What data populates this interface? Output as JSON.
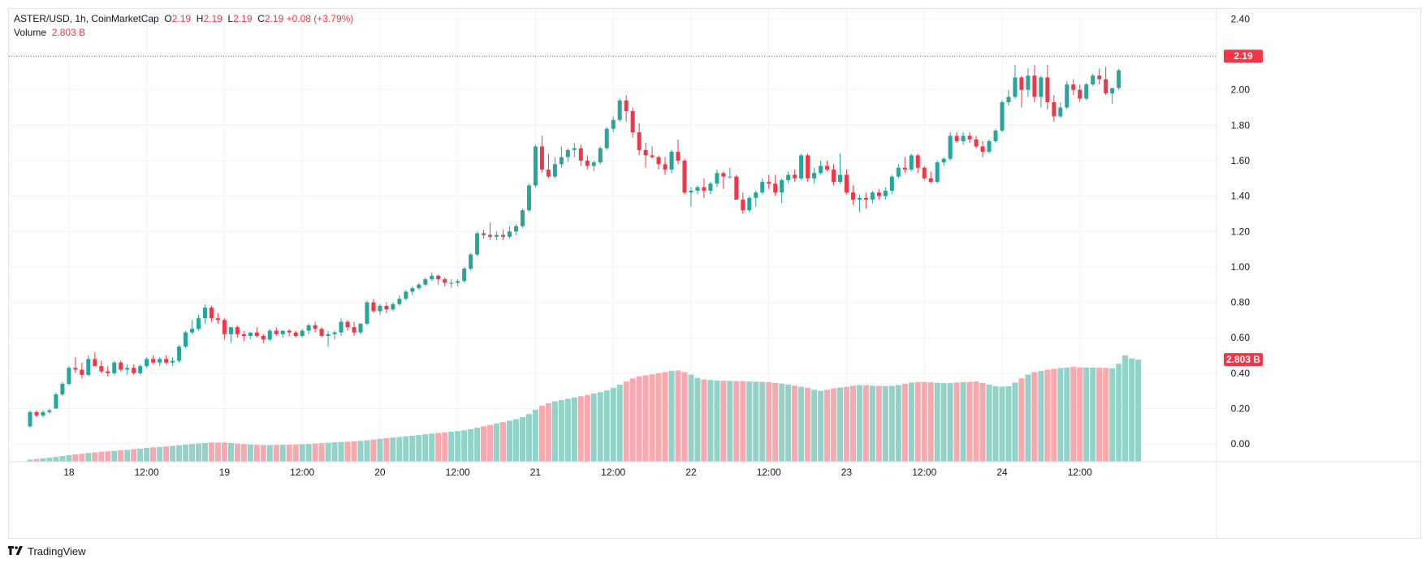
{
  "legend": {
    "symbol_line": "ASTER/USD, 1h, CoinMarketCap",
    "o_label": "O",
    "o_value": "2.19",
    "h_label": "H",
    "h_value": "2.19",
    "l_label": "L",
    "l_value": "2.19",
    "c_label": "C",
    "c_value": "2.19",
    "change": "+0.08 (+3.79%)",
    "volume_label": "Volume",
    "volume_value": "2.803 B"
  },
  "brand": {
    "name": "TradingView"
  },
  "colors": {
    "up": "#26a69a",
    "down": "#f23645",
    "vol_up": "#93d2c8",
    "vol_down": "#f7a9ae",
    "grid": "#f0f3fa",
    "axis_text": "#131722",
    "price_line": "#f23645"
  },
  "chart_data": {
    "type": "candlestick",
    "title": "ASTER/USD, 1h, CoinMarketCap",
    "y_ticks": [
      "2.40",
      "2.20",
      "2.00",
      "1.80",
      "1.60",
      "1.40",
      "1.20",
      "1.00",
      "0.80",
      "0.60",
      "0.40",
      "0.20",
      "0.00"
    ],
    "ylim": [
      -0.1,
      2.42
    ],
    "x_ticks": [
      {
        "label": "18",
        "at": 6
      },
      {
        "label": "12:00",
        "at": 18
      },
      {
        "label": "19",
        "at": 30
      },
      {
        "label": "12:00",
        "at": 42
      },
      {
        "label": "20",
        "at": 54
      },
      {
        "label": "12:00",
        "at": 66
      },
      {
        "label": "21",
        "at": 78
      },
      {
        "label": "12:00",
        "at": 90
      },
      {
        "label": "22",
        "at": 102
      },
      {
        "label": "12:00",
        "at": 114
      },
      {
        "label": "23",
        "at": 126
      },
      {
        "label": "12:00",
        "at": 138
      },
      {
        "label": "24",
        "at": 150
      },
      {
        "label": "12:00",
        "at": 162
      }
    ],
    "last_price_label": "2.19",
    "last_volume_label": "2.803 B",
    "last_price": 2.19,
    "candles": [
      [
        0.1,
        0.19,
        0.09,
        0.18
      ],
      [
        0.18,
        0.19,
        0.15,
        0.16
      ],
      [
        0.16,
        0.19,
        0.15,
        0.18
      ],
      [
        0.18,
        0.2,
        0.17,
        0.19
      ],
      [
        0.2,
        0.29,
        0.2,
        0.28
      ],
      [
        0.28,
        0.35,
        0.27,
        0.34
      ],
      [
        0.34,
        0.44,
        0.33,
        0.43
      ],
      [
        0.43,
        0.49,
        0.4,
        0.42
      ],
      [
        0.42,
        0.46,
        0.37,
        0.39
      ],
      [
        0.39,
        0.5,
        0.38,
        0.48
      ],
      [
        0.48,
        0.52,
        0.45,
        0.44
      ],
      [
        0.44,
        0.47,
        0.4,
        0.41
      ],
      [
        0.41,
        0.44,
        0.38,
        0.4
      ],
      [
        0.4,
        0.47,
        0.39,
        0.46
      ],
      [
        0.46,
        0.47,
        0.41,
        0.42
      ],
      [
        0.42,
        0.45,
        0.39,
        0.43
      ],
      [
        0.43,
        0.45,
        0.39,
        0.4
      ],
      [
        0.4,
        0.45,
        0.39,
        0.44
      ],
      [
        0.44,
        0.49,
        0.43,
        0.48
      ],
      [
        0.48,
        0.5,
        0.45,
        0.46
      ],
      [
        0.46,
        0.49,
        0.44,
        0.48
      ],
      [
        0.48,
        0.5,
        0.45,
        0.46
      ],
      [
        0.46,
        0.49,
        0.44,
        0.47
      ],
      [
        0.47,
        0.56,
        0.46,
        0.55
      ],
      [
        0.55,
        0.64,
        0.54,
        0.63
      ],
      [
        0.63,
        0.7,
        0.62,
        0.65
      ],
      [
        0.65,
        0.73,
        0.64,
        0.71
      ],
      [
        0.71,
        0.79,
        0.68,
        0.77
      ],
      [
        0.77,
        0.78,
        0.69,
        0.71
      ],
      [
        0.71,
        0.74,
        0.68,
        0.7
      ],
      [
        0.7,
        0.71,
        0.59,
        0.62
      ],
      [
        0.62,
        0.66,
        0.57,
        0.66
      ],
      [
        0.66,
        0.67,
        0.6,
        0.62
      ],
      [
        0.62,
        0.64,
        0.58,
        0.61
      ],
      [
        0.61,
        0.63,
        0.59,
        0.63
      ],
      [
        0.63,
        0.66,
        0.6,
        0.61
      ],
      [
        0.61,
        0.62,
        0.57,
        0.59
      ],
      [
        0.59,
        0.65,
        0.58,
        0.64
      ],
      [
        0.64,
        0.66,
        0.61,
        0.62
      ],
      [
        0.62,
        0.64,
        0.6,
        0.64
      ],
      [
        0.64,
        0.65,
        0.61,
        0.63
      ],
      [
        0.63,
        0.64,
        0.6,
        0.61
      ],
      [
        0.61,
        0.65,
        0.6,
        0.64
      ],
      [
        0.64,
        0.68,
        0.62,
        0.67
      ],
      [
        0.67,
        0.69,
        0.63,
        0.65
      ],
      [
        0.65,
        0.66,
        0.6,
        0.61
      ],
      [
        0.61,
        0.64,
        0.55,
        0.62
      ],
      [
        0.62,
        0.64,
        0.59,
        0.63
      ],
      [
        0.63,
        0.71,
        0.61,
        0.69
      ],
      [
        0.69,
        0.7,
        0.64,
        0.66
      ],
      [
        0.66,
        0.69,
        0.61,
        0.63
      ],
      [
        0.63,
        0.68,
        0.62,
        0.68
      ],
      [
        0.68,
        0.81,
        0.67,
        0.8
      ],
      [
        0.8,
        0.82,
        0.74,
        0.75
      ],
      [
        0.75,
        0.79,
        0.73,
        0.78
      ],
      [
        0.78,
        0.8,
        0.74,
        0.76
      ],
      [
        0.76,
        0.8,
        0.75,
        0.79
      ],
      [
        0.79,
        0.84,
        0.78,
        0.82
      ],
      [
        0.82,
        0.87,
        0.81,
        0.86
      ],
      [
        0.86,
        0.89,
        0.84,
        0.88
      ],
      [
        0.88,
        0.91,
        0.87,
        0.9
      ],
      [
        0.9,
        0.94,
        0.89,
        0.93
      ],
      [
        0.93,
        0.97,
        0.92,
        0.95
      ],
      [
        0.95,
        0.96,
        0.9,
        0.93
      ],
      [
        0.93,
        0.94,
        0.89,
        0.91
      ],
      [
        0.91,
        0.93,
        0.88,
        0.91
      ],
      [
        0.91,
        0.93,
        0.89,
        0.92
      ],
      [
        0.92,
        1.0,
        0.91,
        0.99
      ],
      [
        0.99,
        1.08,
        0.98,
        1.07
      ],
      [
        1.07,
        1.2,
        1.06,
        1.19
      ],
      [
        1.19,
        1.21,
        1.16,
        1.18
      ],
      [
        1.18,
        1.25,
        1.15,
        1.17
      ],
      [
        1.17,
        1.2,
        1.15,
        1.18
      ],
      [
        1.18,
        1.21,
        1.15,
        1.17
      ],
      [
        1.17,
        1.23,
        1.16,
        1.2
      ],
      [
        1.2,
        1.24,
        1.18,
        1.23
      ],
      [
        1.23,
        1.33,
        1.22,
        1.32
      ],
      [
        1.32,
        1.47,
        1.31,
        1.46
      ],
      [
        1.46,
        1.69,
        1.45,
        1.68
      ],
      [
        1.68,
        1.74,
        1.53,
        1.55
      ],
      [
        1.55,
        1.64,
        1.5,
        1.51
      ],
      [
        1.51,
        1.62,
        1.5,
        1.58
      ],
      [
        1.58,
        1.68,
        1.56,
        1.62
      ],
      [
        1.62,
        1.67,
        1.59,
        1.66
      ],
      [
        1.66,
        1.7,
        1.62,
        1.67
      ],
      [
        1.67,
        1.69,
        1.57,
        1.6
      ],
      [
        1.6,
        1.63,
        1.55,
        1.57
      ],
      [
        1.57,
        1.6,
        1.54,
        1.59
      ],
      [
        1.59,
        1.68,
        1.58,
        1.67
      ],
      [
        1.67,
        1.79,
        1.66,
        1.78
      ],
      [
        1.78,
        1.85,
        1.76,
        1.83
      ],
      [
        1.83,
        1.95,
        1.82,
        1.94
      ],
      [
        1.94,
        1.97,
        1.82,
        1.88
      ],
      [
        1.88,
        1.9,
        1.73,
        1.76
      ],
      [
        1.76,
        1.81,
        1.63,
        1.66
      ],
      [
        1.66,
        1.7,
        1.56,
        1.63
      ],
      [
        1.63,
        1.68,
        1.61,
        1.62
      ],
      [
        1.62,
        1.63,
        1.55,
        1.58
      ],
      [
        1.58,
        1.62,
        1.52,
        1.55
      ],
      [
        1.55,
        1.66,
        1.53,
        1.65
      ],
      [
        1.65,
        1.72,
        1.58,
        1.6
      ],
      [
        1.6,
        1.61,
        1.41,
        1.42
      ],
      [
        1.42,
        1.45,
        1.34,
        1.43
      ],
      [
        1.43,
        1.46,
        1.41,
        1.45
      ],
      [
        1.45,
        1.5,
        1.39,
        1.43
      ],
      [
        1.43,
        1.48,
        1.41,
        1.47
      ],
      [
        1.47,
        1.55,
        1.45,
        1.53
      ],
      [
        1.53,
        1.54,
        1.44,
        1.51
      ],
      [
        1.51,
        1.56,
        1.5,
        1.51
      ],
      [
        1.51,
        1.52,
        1.38,
        1.38
      ],
      [
        1.38,
        1.42,
        1.3,
        1.32
      ],
      [
        1.32,
        1.4,
        1.31,
        1.39
      ],
      [
        1.39,
        1.43,
        1.34,
        1.42
      ],
      [
        1.42,
        1.5,
        1.41,
        1.48
      ],
      [
        1.48,
        1.52,
        1.44,
        1.47
      ],
      [
        1.47,
        1.52,
        1.4,
        1.42
      ],
      [
        1.42,
        1.5,
        1.36,
        1.49
      ],
      [
        1.49,
        1.54,
        1.47,
        1.52
      ],
      [
        1.52,
        1.55,
        1.48,
        1.5
      ],
      [
        1.5,
        1.64,
        1.49,
        1.63
      ],
      [
        1.63,
        1.64,
        1.48,
        1.5
      ],
      [
        1.5,
        1.56,
        1.47,
        1.53
      ],
      [
        1.53,
        1.6,
        1.52,
        1.57
      ],
      [
        1.57,
        1.6,
        1.54,
        1.55
      ],
      [
        1.55,
        1.58,
        1.46,
        1.48
      ],
      [
        1.48,
        1.64,
        1.47,
        1.52
      ],
      [
        1.52,
        1.55,
        1.41,
        1.42
      ],
      [
        1.42,
        1.46,
        1.35,
        1.38
      ],
      [
        1.38,
        1.41,
        1.31,
        1.39
      ],
      [
        1.39,
        1.42,
        1.33,
        1.38
      ],
      [
        1.38,
        1.43,
        1.36,
        1.42
      ],
      [
        1.42,
        1.44,
        1.38,
        1.4
      ],
      [
        1.4,
        1.45,
        1.38,
        1.43
      ],
      [
        1.43,
        1.52,
        1.41,
        1.51
      ],
      [
        1.51,
        1.58,
        1.5,
        1.56
      ],
      [
        1.56,
        1.62,
        1.53,
        1.55
      ],
      [
        1.55,
        1.64,
        1.54,
        1.63
      ],
      [
        1.63,
        1.64,
        1.53,
        1.56
      ],
      [
        1.56,
        1.57,
        1.49,
        1.5
      ],
      [
        1.5,
        1.54,
        1.47,
        1.48
      ],
      [
        1.48,
        1.6,
        1.47,
        1.59
      ],
      [
        1.59,
        1.62,
        1.57,
        1.61
      ],
      [
        1.61,
        1.76,
        1.6,
        1.74
      ],
      [
        1.74,
        1.76,
        1.7,
        1.71
      ],
      [
        1.71,
        1.76,
        1.69,
        1.74
      ],
      [
        1.74,
        1.76,
        1.7,
        1.72
      ],
      [
        1.72,
        1.74,
        1.67,
        1.68
      ],
      [
        1.68,
        1.71,
        1.62,
        1.65
      ],
      [
        1.65,
        1.72,
        1.64,
        1.71
      ],
      [
        1.71,
        1.78,
        1.7,
        1.77
      ],
      [
        1.77,
        1.94,
        1.76,
        1.93
      ],
      [
        1.93,
        2.0,
        1.91,
        1.96
      ],
      [
        1.96,
        2.14,
        1.95,
        2.07
      ],
      [
        2.07,
        2.08,
        1.9,
        2.0
      ],
      [
        2.0,
        2.12,
        1.96,
        2.08
      ],
      [
        2.08,
        2.14,
        1.93,
        1.96
      ],
      [
        1.96,
        2.08,
        1.9,
        2.07
      ],
      [
        2.07,
        2.14,
        1.89,
        1.93
      ],
      [
        1.93,
        1.97,
        1.82,
        1.85
      ],
      [
        1.85,
        1.93,
        1.84,
        1.9
      ],
      [
        1.9,
        2.05,
        1.89,
        2.03
      ],
      [
        2.03,
        2.06,
        1.97,
        2.0
      ],
      [
        2.0,
        2.03,
        1.93,
        1.95
      ],
      [
        1.95,
        2.04,
        1.94,
        2.03
      ],
      [
        2.03,
        2.09,
        2.02,
        2.08
      ],
      [
        2.08,
        2.12,
        2.03,
        2.06
      ],
      [
        2.06,
        2.13,
        1.97,
        1.98
      ],
      [
        1.98,
        2.01,
        1.92,
        2.01
      ],
      [
        2.01,
        2.12,
        2.0,
        2.11
      ]
    ],
    "volumes": [
      0.01,
      0.013,
      0.016,
      0.019,
      0.023,
      0.027,
      0.031,
      0.035,
      0.038,
      0.042,
      0.045,
      0.048,
      0.05,
      0.052,
      0.055,
      0.057,
      0.06,
      0.063,
      0.066,
      0.069,
      0.071,
      0.073,
      0.076,
      0.079,
      0.082,
      0.085,
      0.088,
      0.09,
      0.092,
      0.092,
      0.092,
      0.09,
      0.087,
      0.085,
      0.083,
      0.081,
      0.08,
      0.08,
      0.08,
      0.081,
      0.082,
      0.083,
      0.084,
      0.085,
      0.087,
      0.089,
      0.091,
      0.093,
      0.095,
      0.096,
      0.098,
      0.1,
      0.103,
      0.106,
      0.11,
      0.113,
      0.116,
      0.119,
      0.122,
      0.125,
      0.128,
      0.132,
      0.135,
      0.138,
      0.141,
      0.144,
      0.147,
      0.151,
      0.156,
      0.163,
      0.17,
      0.177,
      0.184,
      0.19,
      0.197,
      0.204,
      0.214,
      0.229,
      0.25,
      0.268,
      0.28,
      0.29,
      0.296,
      0.302,
      0.308,
      0.314,
      0.32,
      0.327,
      0.334,
      0.342,
      0.355,
      0.37,
      0.385,
      0.4,
      0.41,
      0.415,
      0.42,
      0.425,
      0.43,
      0.436,
      0.438,
      0.43,
      0.418,
      0.402,
      0.395,
      0.392,
      0.39,
      0.389,
      0.388,
      0.387,
      0.386,
      0.385,
      0.384,
      0.383,
      0.382,
      0.378,
      0.375,
      0.37,
      0.365,
      0.36,
      0.355,
      0.345,
      0.34,
      0.345,
      0.352,
      0.356,
      0.36,
      0.365,
      0.368,
      0.367,
      0.365,
      0.364,
      0.363,
      0.364,
      0.368,
      0.374,
      0.38,
      0.383,
      0.383,
      0.381,
      0.379,
      0.377,
      0.377,
      0.38,
      0.382,
      0.383,
      0.385,
      0.378,
      0.37,
      0.362,
      0.36,
      0.362,
      0.38,
      0.4,
      0.418,
      0.43,
      0.436,
      0.442,
      0.446,
      0.45,
      0.452,
      0.455,
      0.453,
      0.452,
      0.452,
      0.451,
      0.45,
      0.448,
      0.47,
      0.51,
      0.495,
      0.49
    ]
  }
}
